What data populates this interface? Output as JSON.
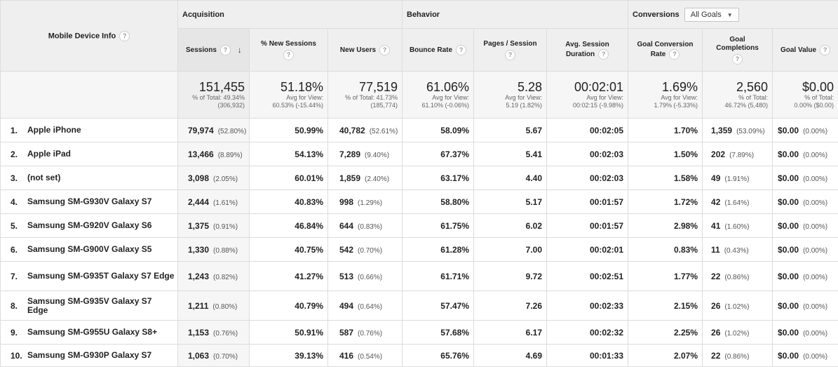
{
  "header": {
    "device_col": "Mobile Device Info",
    "groups": {
      "acquisition": "Acquisition",
      "behavior": "Behavior",
      "conversions": "Conversions",
      "goals_dropdown": "All Goals"
    },
    "columns": {
      "sessions": "Sessions",
      "new_sessions": "% New Sessions",
      "new_users": "New Users",
      "bounce_rate": "Bounce Rate",
      "pages_session": "Pages / Session",
      "avg_duration_1": "Avg. Session",
      "avg_duration_2": "Duration",
      "goal_conv_1": "Goal Conversion",
      "goal_conv_2": "Rate",
      "goal_comp_1": "Goal",
      "goal_comp_2": "Completions",
      "goal_value": "Goal Value"
    }
  },
  "totals": {
    "sessions": {
      "value": "151,455",
      "line1": "% of Total: 49.34%",
      "line2": "(306,932)"
    },
    "new_sessions": {
      "value": "51.18%",
      "line1": "Avg for View:",
      "line2": "60.53% (-15.44%)"
    },
    "new_users": {
      "value": "77,519",
      "line1": "% of Total: 41.73%",
      "line2": "(185,774)"
    },
    "bounce_rate": {
      "value": "61.06%",
      "line1": "Avg for View:",
      "line2": "61.10% (-0.06%)"
    },
    "pages_session": {
      "value": "5.28",
      "line1": "Avg for View:",
      "line2": "5.19 (1.82%)"
    },
    "avg_duration": {
      "value": "00:02:01",
      "line1": "Avg for View:",
      "line2": "00:02:15 (-9.98%)"
    },
    "goal_conv": {
      "value": "1.69%",
      "line1": "Avg for View:",
      "line2": "1.79% (-5.33%)"
    },
    "goal_comp": {
      "value": "2,560",
      "line1": "% of Total:",
      "line2": "46.72% (5,480)"
    },
    "goal_value": {
      "value": "$0.00",
      "line1": "% of Total:",
      "line2": "0.00% ($0.00)"
    }
  },
  "rows": [
    {
      "idx": "1.",
      "device": "Apple iPhone",
      "sessions": "79,974",
      "sessions_pct": "(52.80%)",
      "new_sessions": "50.99%",
      "new_users": "40,782",
      "new_users_pct": "(52.61%)",
      "bounce": "58.09%",
      "pages": "5.67",
      "duration": "00:02:05",
      "conv": "1.70%",
      "comp": "1,359",
      "comp_pct": "(53.09%)",
      "value": "$0.00",
      "value_pct": "(0.00%)"
    },
    {
      "idx": "2.",
      "device": "Apple iPad",
      "sessions": "13,466",
      "sessions_pct": "(8.89%)",
      "new_sessions": "54.13%",
      "new_users": "7,289",
      "new_users_pct": "(9.40%)",
      "bounce": "67.37%",
      "pages": "5.41",
      "duration": "00:02:03",
      "conv": "1.50%",
      "comp": "202",
      "comp_pct": "(7.89%)",
      "value": "$0.00",
      "value_pct": "(0.00%)"
    },
    {
      "idx": "3.",
      "device": "(not set)",
      "sessions": "3,098",
      "sessions_pct": "(2.05%)",
      "new_sessions": "60.01%",
      "new_users": "1,859",
      "new_users_pct": "(2.40%)",
      "bounce": "63.17%",
      "pages": "4.40",
      "duration": "00:02:03",
      "conv": "1.58%",
      "comp": "49",
      "comp_pct": "(1.91%)",
      "value": "$0.00",
      "value_pct": "(0.00%)"
    },
    {
      "idx": "4.",
      "device": "Samsung SM-G930V Galaxy S7",
      "sessions": "2,444",
      "sessions_pct": "(1.61%)",
      "new_sessions": "40.83%",
      "new_users": "998",
      "new_users_pct": "(1.29%)",
      "bounce": "58.80%",
      "pages": "5.17",
      "duration": "00:01:57",
      "conv": "1.72%",
      "comp": "42",
      "comp_pct": "(1.64%)",
      "value": "$0.00",
      "value_pct": "(0.00%)"
    },
    {
      "idx": "5.",
      "device": "Samsung SM-G920V Galaxy S6",
      "sessions": "1,375",
      "sessions_pct": "(0.91%)",
      "new_sessions": "46.84%",
      "new_users": "644",
      "new_users_pct": "(0.83%)",
      "bounce": "61.75%",
      "pages": "6.02",
      "duration": "00:01:57",
      "conv": "2.98%",
      "comp": "41",
      "comp_pct": "(1.60%)",
      "value": "$0.00",
      "value_pct": "(0.00%)"
    },
    {
      "idx": "6.",
      "device": "Samsung SM-G900V Galaxy S5",
      "sessions": "1,330",
      "sessions_pct": "(0.88%)",
      "new_sessions": "40.75%",
      "new_users": "542",
      "new_users_pct": "(0.70%)",
      "bounce": "61.28%",
      "pages": "7.00",
      "duration": "00:02:01",
      "conv": "0.83%",
      "comp": "11",
      "comp_pct": "(0.43%)",
      "value": "$0.00",
      "value_pct": "(0.00%)"
    },
    {
      "idx": "7.",
      "device": "Samsung SM-G935T Galaxy S7 Edge",
      "sessions": "1,243",
      "sessions_pct": "(0.82%)",
      "new_sessions": "41.27%",
      "new_users": "513",
      "new_users_pct": "(0.66%)",
      "bounce": "61.71%",
      "pages": "9.72",
      "duration": "00:02:51",
      "conv": "1.77%",
      "comp": "22",
      "comp_pct": "(0.86%)",
      "value": "$0.00",
      "value_pct": "(0.00%)"
    },
    {
      "idx": "8.",
      "device": "Samsung SM-G935V Galaxy S7 Edge",
      "sessions": "1,211",
      "sessions_pct": "(0.80%)",
      "new_sessions": "40.79%",
      "new_users": "494",
      "new_users_pct": "(0.64%)",
      "bounce": "57.47%",
      "pages": "7.26",
      "duration": "00:02:33",
      "conv": "2.15%",
      "comp": "26",
      "comp_pct": "(1.02%)",
      "value": "$0.00",
      "value_pct": "(0.00%)"
    },
    {
      "idx": "9.",
      "device": "Samsung SM-G955U Galaxy S8+",
      "sessions": "1,153",
      "sessions_pct": "(0.76%)",
      "new_sessions": "50.91%",
      "new_users": "587",
      "new_users_pct": "(0.76%)",
      "bounce": "57.68%",
      "pages": "6.17",
      "duration": "00:02:32",
      "conv": "2.25%",
      "comp": "26",
      "comp_pct": "(1.02%)",
      "value": "$0.00",
      "value_pct": "(0.00%)"
    },
    {
      "idx": "10.",
      "device": "Samsung SM-G930P Galaxy S7",
      "sessions": "1,063",
      "sessions_pct": "(0.70%)",
      "new_sessions": "39.13%",
      "new_users": "416",
      "new_users_pct": "(0.54%)",
      "bounce": "65.76%",
      "pages": "4.69",
      "duration": "00:01:33",
      "conv": "2.07%",
      "comp": "22",
      "comp_pct": "(0.86%)",
      "value": "$0.00",
      "value_pct": "(0.00%)"
    }
  ]
}
